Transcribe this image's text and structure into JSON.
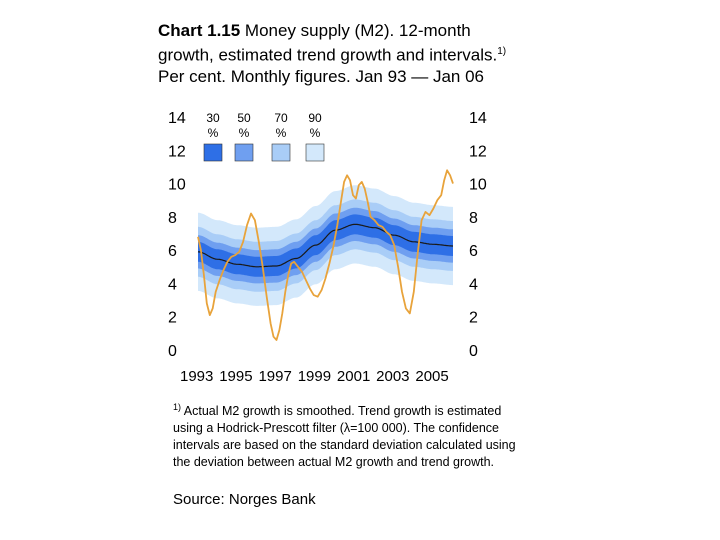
{
  "title": {
    "bold": "Chart 1.15",
    "text_part1": " Money supply (M2). 12-month growth, estimated trend growth and intervals.",
    "superscript": "1)",
    "text_part2": " Per cent. Monthly figures. Jan 93 — Jan 06"
  },
  "footnote": {
    "superscript": "1)",
    "text": " Actual M2 growth is smoothed. Trend growth is estimated using a Hodrick-Prescott filter (λ=100 000). The confidence intervals are based on the standard deviation calculated using the deviation between actual M2 growth and trend growth."
  },
  "source": "Source: Norges Bank",
  "colors": {
    "band_30": "#2e6fe6",
    "band_50": "#6f9ff0",
    "band_70": "#a9cdf7",
    "band_90": "#d3e8fb",
    "actual_line": "#e8a33b",
    "trend_line": "#1a1a1a"
  },
  "chart_data": {
    "type": "area",
    "ylim": [
      0,
      14
    ],
    "xlim": [
      1993.0,
      2006.0
    ],
    "y_ticks_left": [
      "14",
      "12",
      "10",
      "8",
      "6",
      "4",
      "2",
      "0"
    ],
    "y_ticks_right": [
      "14",
      "12",
      "10",
      "8",
      "6",
      "4",
      "2",
      "0"
    ],
    "y_tick_values": [
      14,
      12,
      10,
      8,
      6,
      4,
      2,
      0
    ],
    "x_tick_labels": [
      "1993",
      "1995",
      "1997",
      "1999",
      "2001",
      "2003",
      "2005"
    ],
    "x_tick_values": [
      1993,
      1995,
      1997,
      1999,
      2001,
      2003,
      2005
    ],
    "legend": [
      {
        "label": "30 %",
        "color": "#2e6fe6"
      },
      {
        "label": "50 %",
        "color": "#6f9ff0"
      },
      {
        "label": "70 %",
        "color": "#a9cdf7"
      },
      {
        "label": "90 %",
        "color": "#d3e8fb"
      }
    ],
    "trend": {
      "x": [
        1993.0,
        1994.0,
        1995.0,
        1996.0,
        1997.0,
        1998.0,
        1999.0,
        2000.0,
        2001.0,
        2002.0,
        2003.0,
        2004.0,
        2005.0,
        2006.0
      ],
      "y": [
        5.9,
        5.45,
        5.15,
        5.0,
        5.05,
        5.5,
        6.3,
        7.2,
        7.55,
        7.35,
        6.9,
        6.5,
        6.35,
        6.25
      ]
    },
    "band_half_widths": {
      "band_30": 0.6,
      "band_50": 1.0,
      "band_70": 1.5,
      "band_90": 2.35
    },
    "actual": {
      "name": "M2 growth",
      "x": [
        1993.0,
        1993.15,
        1993.3,
        1993.45,
        1993.6,
        1993.75,
        1993.9,
        1994.1,
        1994.3,
        1994.5,
        1994.7,
        1994.9,
        1995.1,
        1995.3,
        1995.5,
        1995.7,
        1995.9,
        1996.1,
        1996.3,
        1996.5,
        1996.7,
        1996.85,
        1997.0,
        1997.15,
        1997.3,
        1997.45,
        1997.6,
        1997.75,
        1997.9,
        1998.1,
        1998.3,
        1998.5,
        1998.7,
        1998.9,
        1999.1,
        1999.3,
        1999.5,
        1999.7,
        1999.9,
        2000.1,
        2000.3,
        2000.45,
        2000.6,
        2000.75,
        2000.9,
        2001.05,
        2001.2,
        2001.35,
        2001.5,
        2001.65,
        2001.8,
        2002.0,
        2002.2,
        2002.4,
        2002.6,
        2002.8,
        2003.0,
        2003.2,
        2003.4,
        2003.6,
        2003.8,
        2004.0,
        2004.2,
        2004.4,
        2004.6,
        2004.8,
        2005.0,
        2005.2,
        2005.4,
        2005.55,
        2005.7,
        2005.85,
        2006.0
      ],
      "y": [
        6.8,
        6.0,
        4.5,
        2.8,
        2.1,
        2.5,
        3.5,
        4.2,
        4.8,
        5.3,
        5.6,
        5.7,
        5.9,
        6.5,
        7.5,
        8.2,
        7.8,
        6.5,
        5.0,
        3.2,
        1.6,
        0.8,
        0.6,
        1.2,
        2.2,
        3.5,
        4.5,
        5.2,
        5.3,
        5.0,
        4.7,
        4.2,
        3.7,
        3.3,
        3.2,
        3.6,
        4.3,
        5.2,
        6.2,
        7.5,
        9.0,
        10.1,
        10.5,
        10.2,
        9.3,
        9.1,
        9.9,
        10.1,
        9.7,
        8.9,
        8.0,
        7.8,
        7.5,
        7.4,
        7.1,
        6.9,
        6.3,
        5.0,
        3.5,
        2.5,
        2.2,
        3.5,
        5.8,
        7.8,
        8.3,
        8.1,
        8.5,
        9.0,
        9.3,
        10.2,
        10.8,
        10.5,
        10.0
      ]
    }
  }
}
